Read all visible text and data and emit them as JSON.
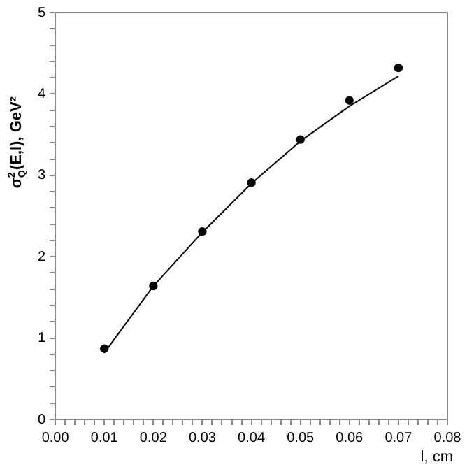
{
  "chart_data": {
    "type": "scatter",
    "xlabel": "l, cm",
    "ylabel": "σ$^{2}$$_{Q}$(E,l), GeV²",
    "xlim": [
      0,
      0.08
    ],
    "ylim": [
      0,
      5
    ],
    "xticks": [
      {
        "value": 0,
        "label": "0.00"
      },
      {
        "value": 0.002,
        "label": null
      },
      {
        "value": 0.004,
        "label": null
      },
      {
        "value": 0.006,
        "label": null
      },
      {
        "value": 0.008,
        "label": null
      },
      {
        "value": 0.01,
        "label": "0.01"
      },
      {
        "value": 0.012,
        "label": null
      },
      {
        "value": 0.014,
        "label": null
      },
      {
        "value": 0.016,
        "label": null
      },
      {
        "value": 0.018,
        "label": null
      },
      {
        "value": 0.02,
        "label": "0.02"
      },
      {
        "value": 0.022,
        "label": null
      },
      {
        "value": 0.024,
        "label": null
      },
      {
        "value": 0.026,
        "label": null
      },
      {
        "value": 0.028,
        "label": null
      },
      {
        "value": 0.03,
        "label": "0.03"
      },
      {
        "value": 0.032,
        "label": null
      },
      {
        "value": 0.034,
        "label": null
      },
      {
        "value": 0.036,
        "label": null
      },
      {
        "value": 0.038,
        "label": null
      },
      {
        "value": 0.04,
        "label": "0.04"
      },
      {
        "value": 0.042,
        "label": null
      },
      {
        "value": 0.044,
        "label": null
      },
      {
        "value": 0.046,
        "label": null
      },
      {
        "value": 0.048,
        "label": null
      },
      {
        "value": 0.05,
        "label": "0.05"
      },
      {
        "value": 0.052,
        "label": null
      },
      {
        "value": 0.054,
        "label": null
      },
      {
        "value": 0.056,
        "label": null
      },
      {
        "value": 0.058,
        "label": null
      },
      {
        "value": 0.06,
        "label": "0.06"
      },
      {
        "value": 0.062,
        "label": null
      },
      {
        "value": 0.064,
        "label": null
      },
      {
        "value": 0.066,
        "label": null
      },
      {
        "value": 0.068,
        "label": null
      },
      {
        "value": 0.07,
        "label": "0.07"
      },
      {
        "value": 0.072,
        "label": null
      },
      {
        "value": 0.074,
        "label": null
      },
      {
        "value": 0.076,
        "label": null
      },
      {
        "value": 0.078,
        "label": null
      },
      {
        "value": 0.08,
        "label": "0.08"
      }
    ],
    "yticks": [
      0,
      {
        "value": 0.2,
        "label": null
      },
      {
        "value": 0.4,
        "label": null
      },
      {
        "value": 0.6,
        "label": null
      },
      {
        "value": 0.8,
        "label": null
      },
      1,
      {
        "value": 1.2,
        "label": null
      },
      {
        "value": 1.4,
        "label": null
      },
      {
        "value": 1.6,
        "label": null
      },
      {
        "value": 1.8,
        "label": null
      },
      2,
      {
        "value": 2.2,
        "label": null
      },
      {
        "value": 2.4,
        "label": null
      },
      {
        "value": 2.6,
        "label": null
      },
      {
        "value": 2.8,
        "label": null
      },
      3,
      {
        "value": 3.2,
        "label": null
      },
      {
        "value": 3.4,
        "label": null
      },
      {
        "value": 3.6,
        "label": null
      },
      {
        "value": 3.8,
        "label": null
      },
      4,
      {
        "value": 4.2,
        "label": null
      },
      {
        "value": 4.4,
        "label": null
      },
      {
        "value": 4.6,
        "label": null
      },
      {
        "value": 4.8,
        "label": null
      },
      5
    ],
    "grid": false,
    "series": [
      {
        "color": "#000000",
        "marker": "circle",
        "x": [
          0.01,
          0.02,
          0.03,
          0.04,
          0.05,
          0.06,
          0.07
        ],
        "values": [
          0.87,
          1.64,
          2.31,
          2.91,
          3.44,
          3.92,
          4.32
        ]
      },
      {
        "type": "line",
        "color": "#000000",
        "marker": "none",
        "x": [
          0.01,
          0.02,
          0.03,
          0.04,
          0.05,
          0.06,
          0.07
        ],
        "values": [
          0.82,
          1.64,
          2.3,
          2.9,
          3.42,
          3.85,
          4.22
        ]
      }
    ]
  }
}
